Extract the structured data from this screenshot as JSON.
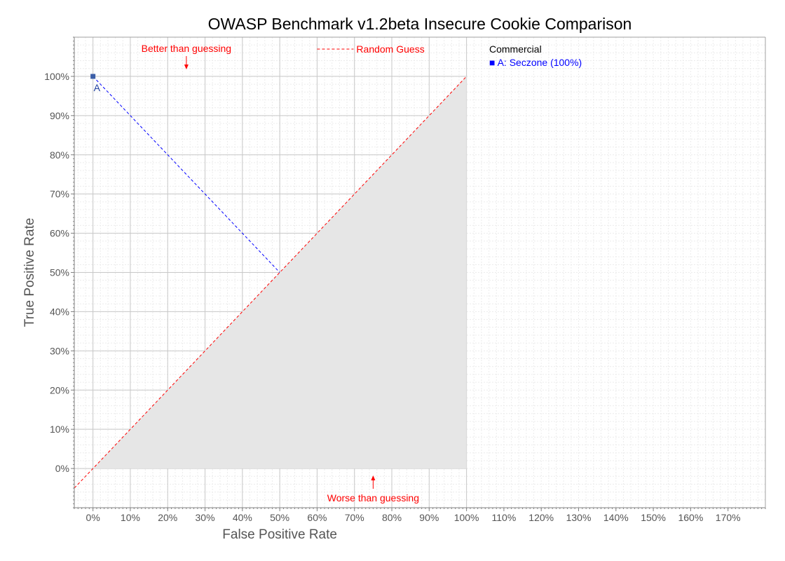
{
  "chart_data": {
    "type": "scatter",
    "title": "OWASP Benchmark v1.2beta Insecure Cookie Comparison",
    "xlabel": "False Positive Rate",
    "ylabel": "True Positive Rate",
    "xlim": [
      -5,
      180
    ],
    "ylim": [
      -10,
      110
    ],
    "x_ticks": [
      0,
      10,
      20,
      30,
      40,
      50,
      60,
      70,
      80,
      90,
      100,
      110,
      120,
      130,
      140,
      150,
      160,
      170
    ],
    "x_tick_labels": [
      "0%",
      "10%",
      "20%",
      "30%",
      "40%",
      "50%",
      "60%",
      "70%",
      "80%",
      "90%",
      "100%",
      "110%",
      "120%",
      "130%",
      "140%",
      "150%",
      "160%",
      "170%"
    ],
    "y_ticks": [
      0,
      10,
      20,
      30,
      40,
      50,
      60,
      70,
      80,
      90,
      100
    ],
    "y_tick_labels": [
      "0%",
      "10%",
      "20%",
      "30%",
      "40%",
      "50%",
      "60%",
      "70%",
      "80%",
      "90%",
      "100%"
    ],
    "grid": true,
    "random_guess_line": {
      "label": "Random Guess",
      "from": [
        -5,
        -5
      ],
      "to": [
        100,
        100
      ],
      "color": "#ff0000"
    },
    "shaded_region": {
      "label": "Worse than guessing",
      "polygon": [
        [
          0,
          0
        ],
        [
          100,
          0
        ],
        [
          100,
          100
        ]
      ],
      "color": "#e6e6e6"
    },
    "series": [
      {
        "name": "A",
        "x": 0,
        "y": 100,
        "color": "#3c5fa8",
        "label": "A",
        "projection_to": [
          50,
          50
        ],
        "projection_color": "#0000ff"
      }
    ],
    "annotations": [
      {
        "text": "Better than guessing",
        "anchor": [
          25,
          100
        ],
        "arrow": "down",
        "color": "#ff0000"
      },
      {
        "text": "Worse than guessing",
        "anchor": [
          75,
          -3
        ],
        "arrow": "up",
        "color": "#ff0000"
      }
    ],
    "legend": {
      "heading": "Commercial",
      "items": [
        {
          "marker": "■",
          "text": "A: Seczone (100%)",
          "color": "#0000ff"
        }
      ],
      "placement": "top-right"
    }
  }
}
